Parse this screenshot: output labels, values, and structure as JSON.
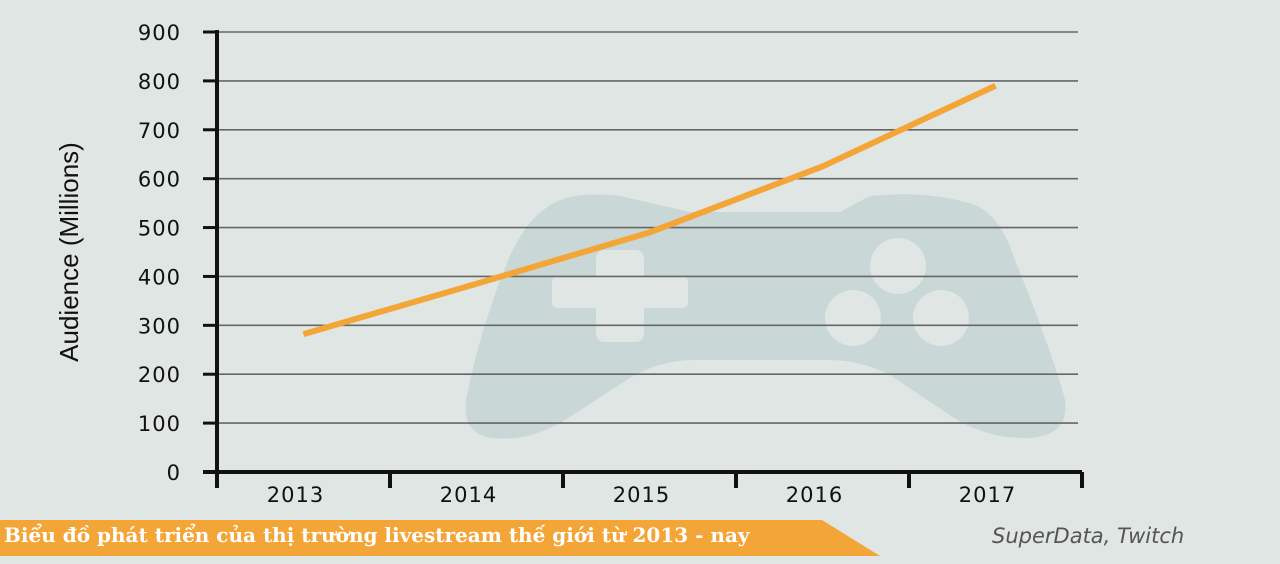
{
  "chart_data": {
    "type": "line",
    "categories": [
      "2013",
      "2014",
      "2015",
      "2016",
      "2017"
    ],
    "series": [
      {
        "values": [
          282,
          385,
          490,
          625,
          790
        ],
        "color": "#f3a637"
      }
    ],
    "ylabel": "Audience (Millions)",
    "xlabel": "",
    "yticks": [
      0,
      100,
      200,
      300,
      400,
      500,
      600,
      700,
      800,
      900
    ],
    "ylim": [
      0,
      900
    ],
    "grid": true
  },
  "caption": "Biểu đồ phát triển của thị trường livestream thế giới từ 2013 - nay",
  "source": "SuperData, Twitch",
  "background_icon": "gamepad-icon",
  "colors": {
    "background": "#dfe6e3",
    "line": "#f3a637",
    "banner": "#f3a637",
    "watermark": "#c9d8d6"
  }
}
